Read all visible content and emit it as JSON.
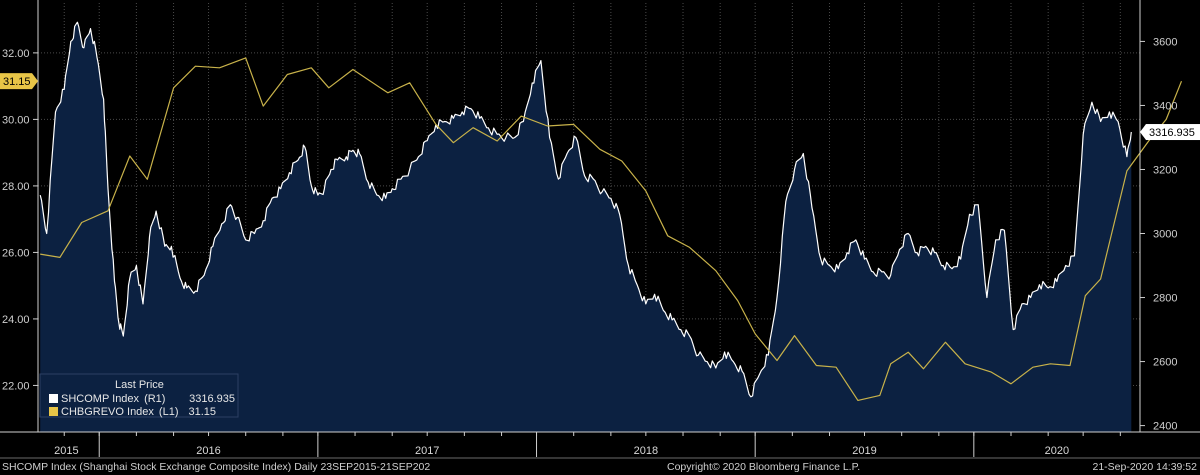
{
  "chart_data": {
    "type": "line",
    "legend_title": "Last Price",
    "legend_position": "bottom-left",
    "series": [
      {
        "name": "SHCOMP Index (R1)",
        "ticker": "SHCOMP Index",
        "axis_label": "(R1)",
        "last_value": "3316.935",
        "axis": "right",
        "color": "#ffffff",
        "fill": "#0c2141",
        "points": [
          [
            2015.73,
            3120
          ],
          [
            2015.76,
            3000
          ],
          [
            2015.8,
            3380
          ],
          [
            2015.84,
            3450
          ],
          [
            2015.87,
            3600
          ],
          [
            2015.9,
            3660
          ],
          [
            2015.93,
            3580
          ],
          [
            2015.96,
            3640
          ],
          [
            2015.99,
            3550
          ],
          [
            2016.02,
            3420
          ],
          [
            2016.04,
            3140
          ],
          [
            2016.07,
            2850
          ],
          [
            2016.09,
            2720
          ],
          [
            2016.11,
            2680
          ],
          [
            2016.14,
            2860
          ],
          [
            2016.17,
            2900
          ],
          [
            2016.2,
            2780
          ],
          [
            2016.23,
            2990
          ],
          [
            2016.26,
            3070
          ],
          [
            2016.3,
            2960
          ],
          [
            2016.33,
            2960
          ],
          [
            2016.37,
            2860
          ],
          [
            2016.4,
            2830
          ],
          [
            2016.44,
            2820
          ],
          [
            2016.48,
            2870
          ],
          [
            2016.52,
            2960
          ],
          [
            2016.56,
            3030
          ],
          [
            2016.6,
            3090
          ],
          [
            2016.63,
            3050
          ],
          [
            2016.67,
            2980
          ],
          [
            2016.71,
            3000
          ],
          [
            2016.75,
            3040
          ],
          [
            2016.79,
            3110
          ],
          [
            2016.83,
            3140
          ],
          [
            2016.87,
            3190
          ],
          [
            2016.91,
            3230
          ],
          [
            2016.94,
            3270
          ],
          [
            2016.97,
            3150
          ],
          [
            2017.0,
            3120
          ],
          [
            2017.03,
            3140
          ],
          [
            2017.06,
            3200
          ],
          [
            2017.09,
            3230
          ],
          [
            2017.13,
            3240
          ],
          [
            2017.16,
            3260
          ],
          [
            2017.19,
            3250
          ],
          [
            2017.23,
            3160
          ],
          [
            2017.27,
            3120
          ],
          [
            2017.31,
            3110
          ],
          [
            2017.34,
            3140
          ],
          [
            2017.38,
            3170
          ],
          [
            2017.42,
            3200
          ],
          [
            2017.46,
            3240
          ],
          [
            2017.5,
            3290
          ],
          [
            2017.54,
            3340
          ],
          [
            2017.58,
            3350
          ],
          [
            2017.62,
            3360
          ],
          [
            2017.66,
            3380
          ],
          [
            2017.7,
            3390
          ],
          [
            2017.74,
            3360
          ],
          [
            2017.78,
            3330
          ],
          [
            2017.82,
            3310
          ],
          [
            2017.86,
            3300
          ],
          [
            2017.9,
            3300
          ],
          [
            2017.94,
            3350
          ],
          [
            2017.98,
            3470
          ],
          [
            2018.02,
            3540
          ],
          [
            2018.06,
            3300
          ],
          [
            2018.1,
            3170
          ],
          [
            2018.14,
            3250
          ],
          [
            2018.18,
            3300
          ],
          [
            2018.22,
            3180
          ],
          [
            2018.26,
            3170
          ],
          [
            2018.3,
            3130
          ],
          [
            2018.34,
            3110
          ],
          [
            2018.38,
            3060
          ],
          [
            2018.42,
            2900
          ],
          [
            2018.46,
            2840
          ],
          [
            2018.5,
            2780
          ],
          [
            2018.54,
            2810
          ],
          [
            2018.58,
            2760
          ],
          [
            2018.62,
            2730
          ],
          [
            2018.66,
            2700
          ],
          [
            2018.7,
            2680
          ],
          [
            2018.74,
            2620
          ],
          [
            2018.78,
            2600
          ],
          [
            2018.82,
            2580
          ],
          [
            2018.86,
            2630
          ],
          [
            2018.9,
            2600
          ],
          [
            2018.94,
            2570
          ],
          [
            2018.98,
            2490
          ],
          [
            2019.02,
            2560
          ],
          [
            2019.06,
            2620
          ],
          [
            2019.1,
            2800
          ],
          [
            2019.14,
            3100
          ],
          [
            2019.18,
            3200
          ],
          [
            2019.22,
            3250
          ],
          [
            2019.26,
            3080
          ],
          [
            2019.3,
            2920
          ],
          [
            2019.34,
            2900
          ],
          [
            2019.38,
            2890
          ],
          [
            2019.42,
            2940
          ],
          [
            2019.46,
            2980
          ],
          [
            2019.5,
            2920
          ],
          [
            2019.54,
            2880
          ],
          [
            2019.58,
            2880
          ],
          [
            2019.62,
            2870
          ],
          [
            2019.66,
            2950
          ],
          [
            2019.7,
            3000
          ],
          [
            2019.74,
            2940
          ],
          [
            2019.78,
            2960
          ],
          [
            2019.82,
            2940
          ],
          [
            2019.86,
            2900
          ],
          [
            2019.9,
            2890
          ],
          [
            2019.94,
            2920
          ],
          [
            2019.98,
            3060
          ],
          [
            2020.02,
            3090
          ],
          [
            2020.06,
            2800
          ],
          [
            2020.1,
            2980
          ],
          [
            2020.14,
            3010
          ],
          [
            2020.18,
            2700
          ],
          [
            2020.22,
            2780
          ],
          [
            2020.26,
            2800
          ],
          [
            2020.3,
            2840
          ],
          [
            2020.34,
            2830
          ],
          [
            2020.38,
            2850
          ],
          [
            2020.42,
            2900
          ],
          [
            2020.46,
            2930
          ],
          [
            2020.5,
            3310
          ],
          [
            2020.54,
            3410
          ],
          [
            2020.58,
            3350
          ],
          [
            2020.62,
            3380
          ],
          [
            2020.66,
            3350
          ],
          [
            2020.7,
            3240
          ],
          [
            2020.72,
            3316.935
          ]
        ]
      },
      {
        "name": "CHBGREVO Index (L1)",
        "ticker": "CHBGREVO Index",
        "axis_label": "(L1)",
        "last_value": "31.15",
        "axis": "left",
        "color": "#c8b24a",
        "points": [
          [
            2015.73,
            25.95
          ],
          [
            2015.82,
            25.85
          ],
          [
            2015.92,
            26.9
          ],
          [
            2016.04,
            27.25
          ],
          [
            2016.14,
            28.9
          ],
          [
            2016.22,
            28.2
          ],
          [
            2016.34,
            30.95
          ],
          [
            2016.44,
            31.6
          ],
          [
            2016.55,
            31.55
          ],
          [
            2016.67,
            31.85
          ],
          [
            2016.75,
            30.4
          ],
          [
            2016.86,
            31.35
          ],
          [
            2016.97,
            31.55
          ],
          [
            2017.05,
            30.95
          ],
          [
            2017.16,
            31.5
          ],
          [
            2017.32,
            30.8
          ],
          [
            2017.42,
            31.1
          ],
          [
            2017.54,
            29.85
          ],
          [
            2017.62,
            29.3
          ],
          [
            2017.71,
            29.75
          ],
          [
            2017.82,
            29.35
          ],
          [
            2017.93,
            30.1
          ],
          [
            2018.05,
            29.8
          ],
          [
            2018.17,
            29.85
          ],
          [
            2018.29,
            29.1
          ],
          [
            2018.39,
            28.75
          ],
          [
            2018.5,
            27.85
          ],
          [
            2018.6,
            26.5
          ],
          [
            2018.7,
            26.15
          ],
          [
            2018.82,
            25.45
          ],
          [
            2018.92,
            24.55
          ],
          [
            2019.0,
            23.55
          ],
          [
            2019.1,
            22.75
          ],
          [
            2019.18,
            23.5
          ],
          [
            2019.28,
            22.6
          ],
          [
            2019.37,
            22.55
          ],
          [
            2019.47,
            21.55
          ],
          [
            2019.57,
            21.7
          ],
          [
            2019.62,
            22.65
          ],
          [
            2019.7,
            23.0
          ],
          [
            2019.77,
            22.5
          ],
          [
            2019.87,
            23.3
          ],
          [
            2019.96,
            22.65
          ],
          [
            2020.08,
            22.4
          ],
          [
            2020.17,
            22.05
          ],
          [
            2020.27,
            22.55
          ],
          [
            2020.35,
            22.65
          ],
          [
            2020.44,
            22.6
          ],
          [
            2020.51,
            24.7
          ],
          [
            2020.58,
            25.2
          ],
          [
            2020.7,
            28.45
          ],
          [
            2020.8,
            29.35
          ],
          [
            2020.88,
            30.0
          ],
          [
            2020.95,
            31.15
          ]
        ]
      }
    ],
    "left_axis": {
      "ylim": [
        20.6,
        33.5
      ],
      "ticks": [
        "22.00",
        "24.00",
        "26.00",
        "28.00",
        "30.00",
        "32.00"
      ],
      "current_label": "31.15"
    },
    "right_axis": {
      "ylim": [
        2380,
        3720
      ],
      "ticks": [
        "2400",
        "2600",
        "2800",
        "3000",
        "3200",
        "3400",
        "3600"
      ],
      "current_label": "3316.935"
    },
    "x_axis": {
      "xlim": [
        2015.72,
        2020.76
      ],
      "year_labels": [
        {
          "label": "2015",
          "x": 2015.85
        },
        {
          "label": "2016",
          "x": 2016.5
        },
        {
          "label": "2017",
          "x": 2017.5
        },
        {
          "label": "2018",
          "x": 2018.5
        },
        {
          "label": "2019",
          "x": 2019.5
        },
        {
          "label": "2020",
          "x": 2020.38
        }
      ],
      "year_boundaries": [
        2016.0,
        2017.0,
        2018.0,
        2019.0,
        2020.0
      ],
      "grid_months": [
        2015.84,
        2016.0,
        2016.17,
        2016.34,
        2016.5,
        2016.67,
        2016.84,
        2017.0,
        2017.17,
        2017.34,
        2017.5,
        2017.67,
        2017.84,
        2018.0,
        2018.17,
        2018.34,
        2018.5,
        2018.67,
        2018.84,
        2019.0,
        2019.17,
        2019.34,
        2019.5,
        2019.67,
        2019.84,
        2020.0,
        2020.17,
        2020.34,
        2020.5,
        2020.67
      ]
    },
    "footer": {
      "description": "SHCOMP Index (Shanghai Stock Exchange Composite Index)  Daily 23SEP2015-21SEP202",
      "copyright": "Copyright© 2020 Bloomberg Finance L.P.",
      "timestamp": "21-Sep-2020 14:39:52"
    },
    "colors": {
      "background": "#000000",
      "grid": "#4a4a4a",
      "axis": "#cfcfcf",
      "badge_left": "#e8c547",
      "badge_right": "#ffffff"
    }
  }
}
